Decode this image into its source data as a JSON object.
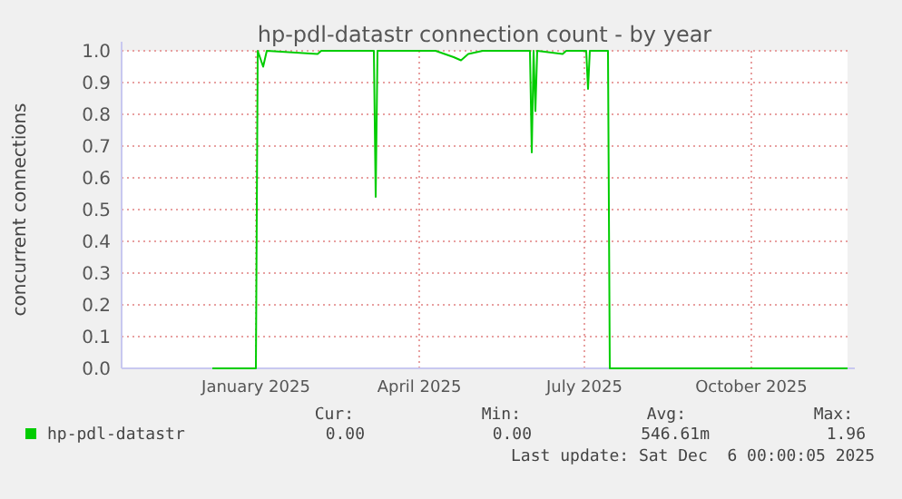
{
  "chart_data": {
    "type": "line",
    "title": "hp-pdl-datastr connection count - by year",
    "ylabel": "concurrent connections",
    "xlim": [
      "2024-10-19",
      "2025-11-23"
    ],
    "xticks": [
      {
        "value": "2025-01-01",
        "label": "January 2025"
      },
      {
        "value": "2025-04-01",
        "label": "April 2025"
      },
      {
        "value": "2025-07-01",
        "label": "July 2025"
      },
      {
        "value": "2025-10-01",
        "label": "October 2025"
      }
    ],
    "ylim": [
      0,
      1
    ],
    "yticks": [
      {
        "value": 0,
        "label": "0.0"
      },
      {
        "value": 0.1,
        "label": "0.1"
      },
      {
        "value": 0.2,
        "label": "0.2"
      },
      {
        "value": 0.3,
        "label": "0.3"
      },
      {
        "value": 0.4,
        "label": "0.4"
      },
      {
        "value": 0.5,
        "label": "0.5"
      },
      {
        "value": 0.6,
        "label": "0.6"
      },
      {
        "value": 0.7,
        "label": "0.7"
      },
      {
        "value": 0.8,
        "label": "0.8"
      },
      {
        "value": 0.9,
        "label": "0.9"
      },
      {
        "value": 1,
        "label": "1.0"
      }
    ],
    "grid": true,
    "legend": "bottom left",
    "line_style": "solid",
    "series": [
      {
        "name": "hp-pdl-datastr",
        "color": "#00cc00",
        "x": [
          "2024-12-08",
          "2025-01-01",
          "2025-01-02",
          "2025-01-05",
          "2025-01-07",
          "2025-02-04",
          "2025-02-06",
          "2025-03-07",
          "2025-03-08",
          "2025-03-09",
          "2025-04-10",
          "2025-04-20",
          "2025-04-24",
          "2025-04-28",
          "2025-05-06",
          "2025-06-01",
          "2025-06-02",
          "2025-06-03",
          "2025-06-04",
          "2025-06-05",
          "2025-06-19",
          "2025-06-21",
          "2025-07-02",
          "2025-07-03",
          "2025-07-04",
          "2025-07-14",
          "2025-07-15",
          "2025-11-23"
        ],
        "values": [
          0,
          0,
          1,
          0.95,
          1,
          0.99,
          1,
          1,
          0.54,
          1,
          1,
          0.98,
          0.97,
          0.99,
          1,
          1,
          0.68,
          1,
          0.81,
          1,
          0.99,
          1,
          1,
          0.88,
          1,
          1,
          0,
          0
        ]
      }
    ],
    "annotations": [
      "Cur:",
      "Min:",
      "Avg:",
      "Max:",
      "0.00",
      "0.00",
      "546.61m",
      "1.96",
      "Last update: Sat Dec  6 00:00:05 2025"
    ]
  }
}
